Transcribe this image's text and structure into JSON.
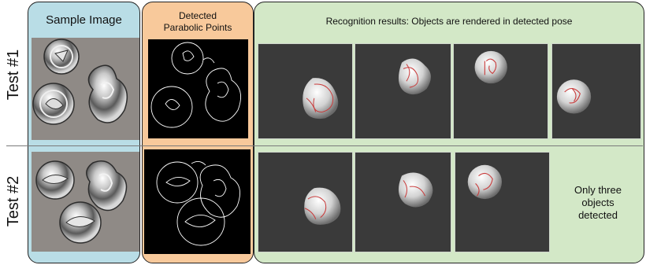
{
  "headers": {
    "sample": "Sample Image",
    "detected": "Detected\nParabolic Points",
    "recognition": "Recognition results: Objects are rendered in detected pose"
  },
  "rows": [
    {
      "label": "Test #1"
    },
    {
      "label": "Test #2",
      "note": "Only three\nobjects\ndetected"
    }
  ],
  "colors": {
    "sample_panel": "#b9dde6",
    "detected_panel": "#f8c99b",
    "recognition_panel": "#d3e8c7",
    "render_bg": "#3a3a3a",
    "contour": "#c93a3a",
    "photo_bg": "#8f8a86"
  }
}
